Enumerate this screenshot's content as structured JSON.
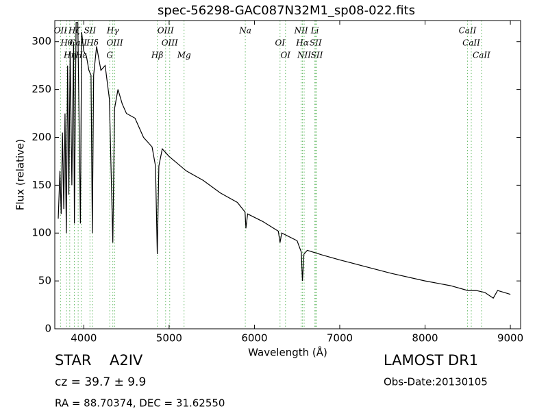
{
  "chart_data": {
    "type": "line",
    "title": "spec-56298-GAC087N32M1_sp08-022.fits",
    "xlabel": "Wavelength (Å)",
    "ylabel": "Flux (relative)",
    "xlim": [
      3660,
      9120
    ],
    "ylim": [
      0,
      322
    ],
    "xticks": [
      4000,
      5000,
      6000,
      7000,
      8000,
      9000
    ],
    "yticks": [
      0,
      50,
      100,
      150,
      200,
      250,
      300
    ],
    "color": "#000000",
    "line_color": "#66bb66",
    "x": [
      3700,
      3720,
      3735,
      3750,
      3765,
      3780,
      3795,
      3810,
      3825,
      3840,
      3860,
      3880,
      3890,
      3910,
      3930,
      3960,
      3975,
      4000,
      4030,
      4060,
      4085,
      4100,
      4115,
      4150,
      4200,
      4250,
      4300,
      4340,
      4360,
      4400,
      4450,
      4500,
      4600,
      4700,
      4800,
      4840,
      4861,
      4880,
      4920,
      5000,
      5200,
      5400,
      5600,
      5800,
      5890,
      5900,
      5920,
      6100,
      6280,
      6300,
      6320,
      6500,
      6550,
      6563,
      6580,
      6620,
      6800,
      7000,
      7300,
      7600,
      8000,
      8300,
      8500,
      8600,
      8700,
      8800,
      8850,
      9000
    ],
    "y": [
      115,
      165,
      120,
      205,
      125,
      225,
      100,
      275,
      140,
      290,
      150,
      300,
      110,
      320,
      320,
      110,
      310,
      290,
      285,
      270,
      265,
      100,
      265,
      295,
      270,
      275,
      240,
      90,
      230,
      250,
      235,
      225,
      220,
      200,
      190,
      170,
      78,
      170,
      188,
      180,
      165,
      155,
      142,
      132,
      122,
      105,
      120,
      112,
      102,
      90,
      100,
      92,
      80,
      50,
      78,
      82,
      77,
      72,
      65,
      58,
      50,
      45,
      40,
      40,
      38,
      32,
      40,
      36
    ],
    "lines": [
      {
        "x": 3727,
        "label": "OII"
      },
      {
        "x": 3798,
        "label": "Hθ"
      },
      {
        "x": 3835,
        "label": "Hη"
      },
      {
        "x": 3889,
        "label": "Hζ"
      },
      {
        "x": 3934,
        "label": "CaII"
      },
      {
        "x": 3969,
        "label": "Hε"
      },
      {
        "x": 4072,
        "label": "SII"
      },
      {
        "x": 4102,
        "label": "Hδ"
      },
      {
        "x": 4304,
        "label": "G"
      },
      {
        "x": 4340,
        "label": "Hγ"
      },
      {
        "x": 4363,
        "label": "OIII"
      },
      {
        "x": 4861,
        "label": "Hβ"
      },
      {
        "x": 4959,
        "label": "OIII"
      },
      {
        "x": 5007,
        "label": "OIII"
      },
      {
        "x": 5175,
        "label": "Mg"
      },
      {
        "x": 5893,
        "label": "Na"
      },
      {
        "x": 6300,
        "label": "OI"
      },
      {
        "x": 6364,
        "label": "OI"
      },
      {
        "x": 6548,
        "label": "NII"
      },
      {
        "x": 6563,
        "label": "Hα"
      },
      {
        "x": 6583,
        "label": "NII"
      },
      {
        "x": 6708,
        "label": "Li"
      },
      {
        "x": 6717,
        "label": "SII"
      },
      {
        "x": 6731,
        "label": "SII"
      },
      {
        "x": 8498,
        "label": "CaII"
      },
      {
        "x": 8542,
        "label": "CaII"
      },
      {
        "x": 8662,
        "label": "CaII"
      }
    ]
  },
  "info": {
    "class": "STAR",
    "subclass": "A2IV",
    "cz": "cz = 39.7 ± 9.9",
    "coords": "RA = 88.70374, DEC = 31.62550",
    "survey": "LAMOST DR1",
    "date": "Obs-Date:20130105"
  }
}
